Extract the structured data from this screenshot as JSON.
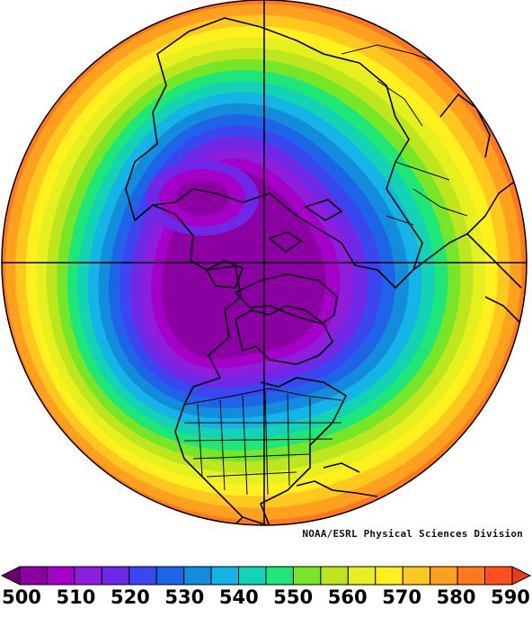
{
  "credit": "NOAA/ESRL Physical Sciences Division",
  "colorbar": {
    "min": 500,
    "max": 590,
    "step": 5,
    "tick_labels": [
      "500",
      "510",
      "520",
      "530",
      "540",
      "550",
      "560",
      "570",
      "580",
      "590"
    ],
    "colors": [
      "#6a006e",
      "#8a00a0",
      "#a400c8",
      "#8c1edc",
      "#6e28e6",
      "#3c46f0",
      "#1e64e6",
      "#148cdc",
      "#14b4e6",
      "#14d2b4",
      "#1ee678",
      "#78e628",
      "#bee61e",
      "#e6f01e",
      "#fff01e",
      "#ffc81e",
      "#ffa01e",
      "#ff781e",
      "#ff501e",
      "#e63c1e"
    ]
  },
  "map": {
    "projection": "north-polar-stereographic",
    "field_levels": [
      590,
      585,
      580,
      575,
      570,
      565,
      560,
      555,
      550,
      545,
      540,
      535,
      530,
      525,
      520,
      515,
      510
    ]
  }
}
